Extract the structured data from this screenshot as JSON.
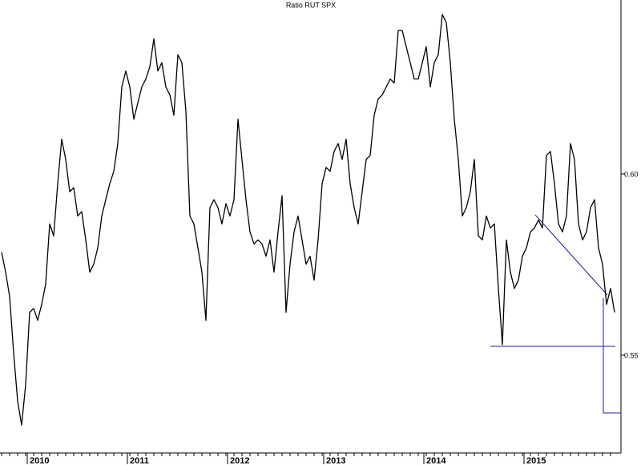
{
  "chart_data": {
    "type": "line",
    "title": "Ratio RUT SPX",
    "categories": [
      null,
      null,
      null,
      null,
      null,
      null,
      null,
      "2010",
      null,
      null,
      null,
      null,
      null,
      null,
      null,
      null,
      null,
      null,
      null,
      null,
      null,
      null,
      null,
      null,
      null,
      null,
      null,
      null,
      null,
      null,
      null,
      null,
      "2011",
      null,
      null,
      null,
      null,
      null,
      null,
      null,
      null,
      null,
      null,
      null,
      null,
      null,
      null,
      null,
      null,
      null,
      null,
      null,
      null,
      null,
      null,
      null,
      null,
      "2012",
      null,
      null,
      null,
      null,
      null,
      null,
      null,
      null,
      null,
      null,
      null,
      null,
      null,
      null,
      null,
      null,
      null,
      null,
      null,
      null,
      null,
      null,
      null,
      "2013",
      null,
      null,
      null,
      null,
      null,
      null,
      null,
      null,
      null,
      null,
      null,
      null,
      null,
      null,
      null,
      null,
      null,
      null,
      null,
      null,
      null,
      null,
      null,
      null,
      "2014",
      null,
      null,
      null,
      null,
      null,
      null,
      null,
      null,
      null,
      null,
      null,
      null,
      null,
      null,
      null,
      null,
      null,
      null,
      null,
      null,
      null,
      null,
      null,
      null,
      "2015",
      null,
      null,
      null,
      null,
      null,
      null,
      null,
      null,
      null,
      null,
      null,
      null,
      null,
      null,
      null,
      null,
      null,
      null,
      null,
      null,
      null,
      null
    ],
    "values": [
      0.5784,
      0.5729,
      0.5662,
      0.5507,
      0.5373,
      0.5307,
      0.5418,
      0.5618,
      0.5629,
      0.5596,
      0.564,
      0.5696,
      0.5862,
      0.5829,
      0.5973,
      0.6096,
      0.604,
      0.5951,
      0.5962,
      0.5884,
      0.5896,
      0.5818,
      0.5729,
      0.5751,
      0.5796,
      0.5884,
      0.5929,
      0.5973,
      0.6007,
      0.6084,
      0.624,
      0.6284,
      0.624,
      0.6151,
      0.6196,
      0.624,
      0.6262,
      0.6296,
      0.6373,
      0.6284,
      0.6307,
      0.624,
      0.6218,
      0.6162,
      0.6329,
      0.6307,
      0.6173,
      0.5884,
      0.5862,
      0.5796,
      0.5729,
      0.5596,
      0.5907,
      0.5929,
      0.5907,
      0.5862,
      0.5918,
      0.5884,
      0.5929,
      0.6151,
      0.604,
      0.5929,
      0.584,
      0.5807,
      0.5818,
      0.5807,
      0.5773,
      0.5818,
      0.5729,
      0.584,
      0.594,
      0.5618,
      0.5751,
      0.584,
      0.5884,
      0.5818,
      0.5751,
      0.5773,
      0.5707,
      0.5818,
      0.5973,
      0.6018,
      0.6007,
      0.6062,
      0.6084,
      0.604,
      0.6096,
      0.5973,
      0.5907,
      0.5862,
      0.5951,
      0.604,
      0.6051,
      0.6162,
      0.6207,
      0.6218,
      0.624,
      0.6262,
      0.6251,
      0.6396,
      0.6396,
      0.6351,
      0.6307,
      0.6262,
      0.6262,
      0.6307,
      0.6351,
      0.624,
      0.6307,
      0.6329,
      0.644,
      0.6418,
      0.6307,
      0.6151,
      0.604,
      0.5884,
      0.5907,
      0.5951,
      0.604,
      0.5829,
      0.5818,
      0.5884,
      0.5851,
      0.5862,
      0.5684,
      0.5529,
      0.5818,
      0.5729,
      0.5684,
      0.5707,
      0.5773,
      0.5796,
      0.584,
      0.5851,
      0.5873,
      0.5851,
      0.6051,
      0.6062,
      0.5973,
      0.5862,
      0.584,
      0.5884,
      0.6084,
      0.604,
      0.5862,
      0.5818,
      0.584,
      0.5907,
      0.5929,
      0.5796,
      0.5751,
      0.564,
      0.5684,
      0.5618
    ],
    "color": "#000000",
    "ylim": [
      0.523,
      0.648
    ],
    "yticks": [
      {
        "value": 0.55,
        "label": "0.55"
      },
      {
        "value": 0.6,
        "label": "0.60"
      }
    ],
    "grid": false
  }
}
